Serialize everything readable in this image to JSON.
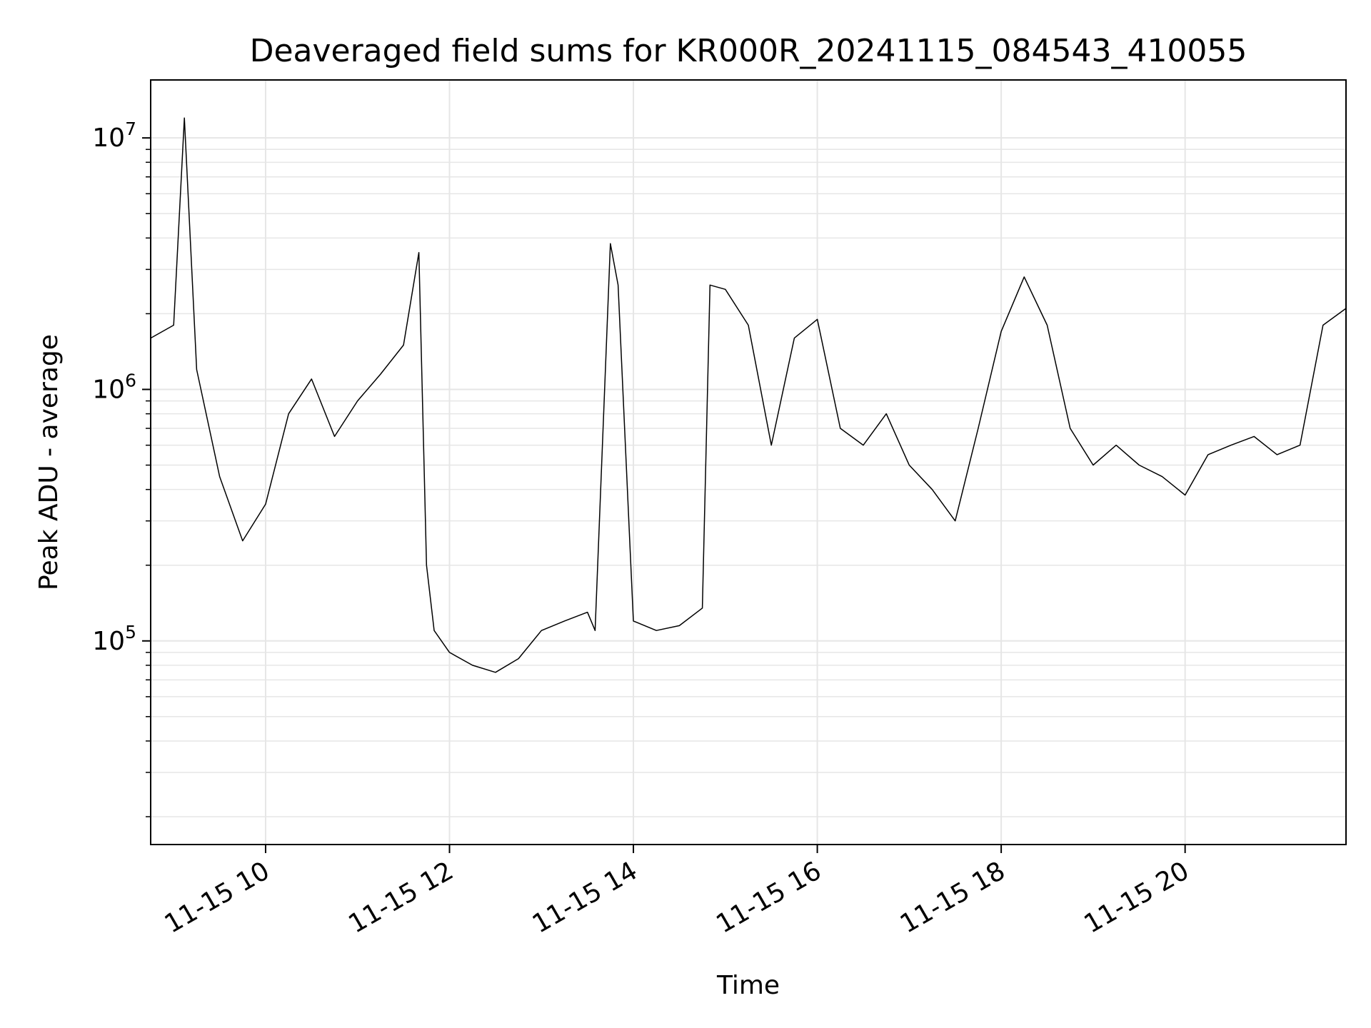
{
  "chart_data": {
    "type": "line",
    "title": "Deaveraged field sums for KR000R_20241115_084543_410055",
    "xlabel": "Time",
    "ylabel": "Peak ADU - average",
    "yscale": "log",
    "ylim": [
      15500,
      17000000
    ],
    "xlim": [
      "11-15 08:45",
      "11-15 21:45"
    ],
    "grid": true,
    "x_ticks": [
      "11-15 10",
      "11-15 12",
      "11-15 14",
      "11-15 16",
      "11-15 18",
      "11-15 20"
    ],
    "y_ticks": [
      {
        "base": "10",
        "exp": "5",
        "value": 100000
      },
      {
        "base": "10",
        "exp": "6",
        "value": 1000000
      },
      {
        "base": "10",
        "exp": "7",
        "value": 10000000
      }
    ],
    "line_color": "#000000",
    "grid_color": "#e6e6e6",
    "series": [
      {
        "x": [
          "11-15 08:45",
          "11-15 09:00",
          "11-15 09:07",
          "11-15 09:15",
          "11-15 09:30",
          "11-15 09:45",
          "11-15 10:00",
          "11-15 10:15",
          "11-15 10:30",
          "11-15 10:45",
          "11-15 11:00",
          "11-15 11:15",
          "11-15 11:30",
          "11-15 11:40",
          "11-15 11:45",
          "11-15 11:50",
          "11-15 12:00",
          "11-15 12:15",
          "11-15 12:30",
          "11-15 12:45",
          "11-15 13:00",
          "11-15 13:15",
          "11-15 13:30",
          "11-15 13:35",
          "11-15 13:45",
          "11-15 13:50",
          "11-15 14:00",
          "11-15 14:15",
          "11-15 14:30",
          "11-15 14:45",
          "11-15 14:50",
          "11-15 15:00",
          "11-15 15:15",
          "11-15 15:30",
          "11-15 15:45",
          "11-15 16:00",
          "11-15 16:15",
          "11-15 16:30",
          "11-15 16:45",
          "11-15 17:00",
          "11-15 17:15",
          "11-15 17:30",
          "11-15 17:45",
          "11-15 18:00",
          "11-15 18:15",
          "11-15 18:30",
          "11-15 18:45",
          "11-15 19:00",
          "11-15 19:15",
          "11-15 19:30",
          "11-15 19:45",
          "11-15 20:00",
          "11-15 20:15",
          "11-15 20:30",
          "11-15 20:45",
          "11-15 21:00",
          "11-15 21:15",
          "11-15 21:30",
          "11-15 21:45"
        ],
        "y": [
          1600000,
          1800000,
          12000000,
          1200000,
          450000,
          250000,
          350000,
          800000,
          1100000,
          650000,
          900000,
          1150000,
          1500000,
          3500000,
          200000,
          110000,
          90000,
          80000,
          75000,
          85000,
          110000,
          120000,
          130000,
          110000,
          3800000,
          2600000,
          120000,
          110000,
          115000,
          135000,
          2600000,
          2500000,
          1800000,
          600000,
          1600000,
          1900000,
          700000,
          600000,
          800000,
          500000,
          400000,
          300000,
          700000,
          1700000,
          2800000,
          1800000,
          700000,
          500000,
          600000,
          500000,
          450000,
          380000,
          550000,
          600000,
          650000,
          550000,
          600000,
          1800000,
          2100000
        ]
      }
    ]
  }
}
